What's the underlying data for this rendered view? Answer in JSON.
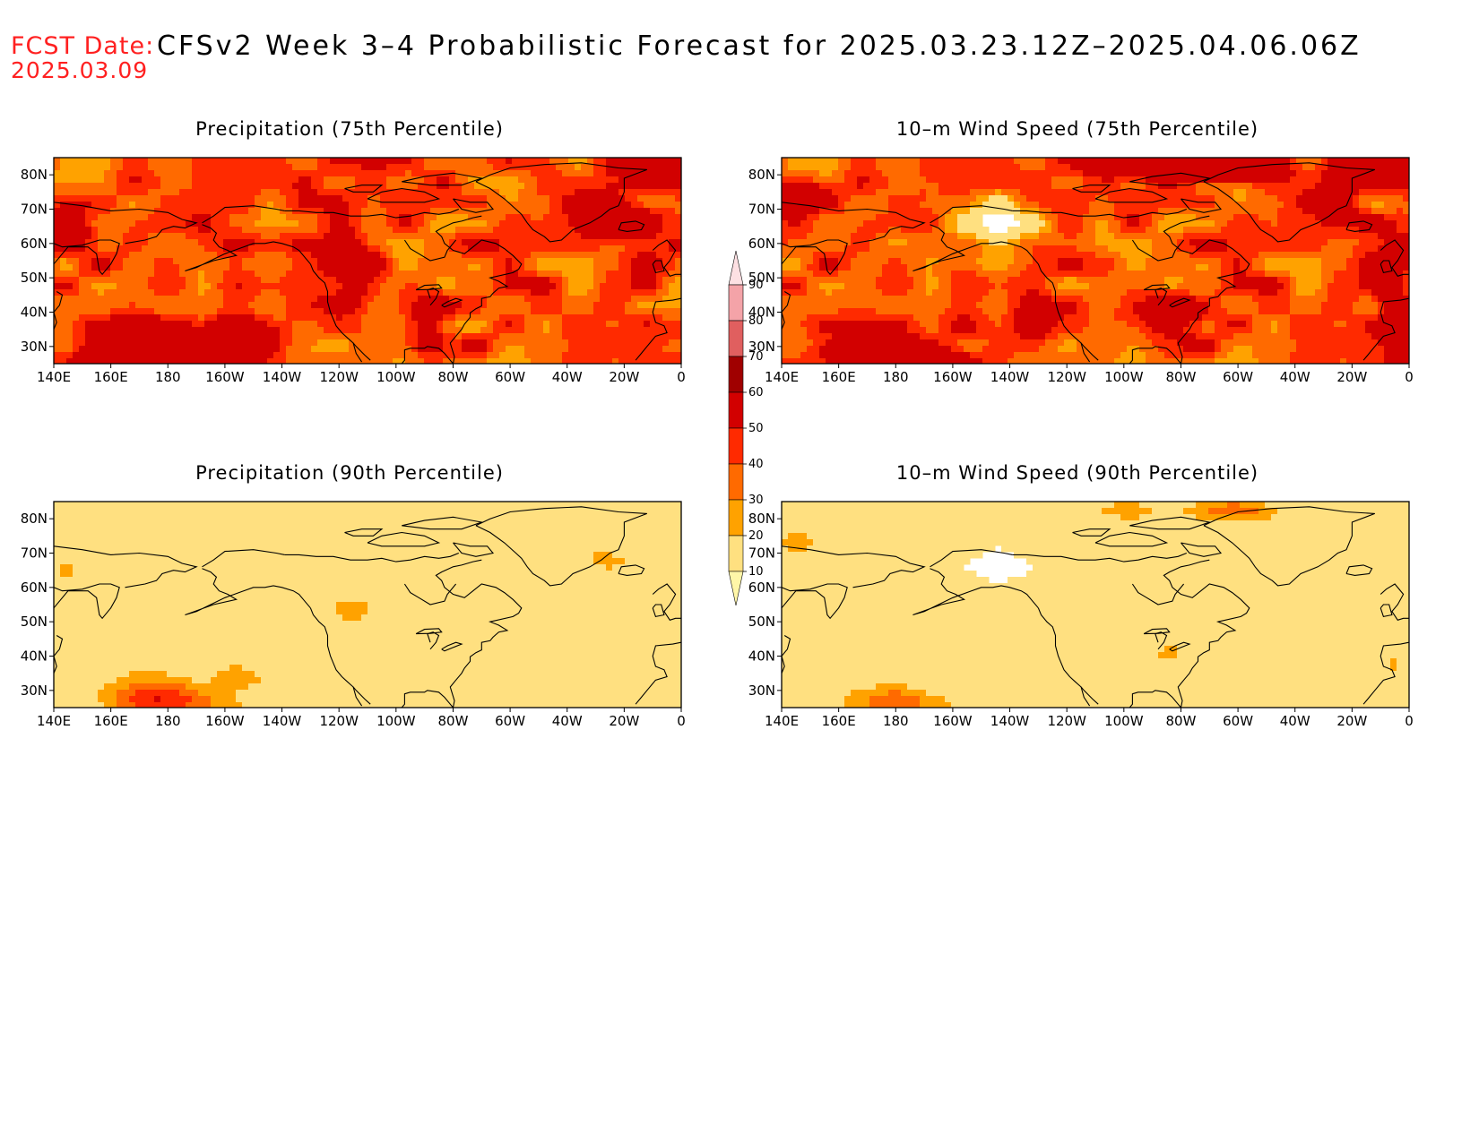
{
  "header": {
    "fcst_label": "FCST Date:",
    "fcst_date": "2025.03.09",
    "title": "CFSv2 Week 3–4 Probabilistic Forecast for 2025.03.23.12Z–2025.04.06.06Z"
  },
  "axes": {
    "lon_labels": [
      "140E",
      "160E",
      "180",
      "160W",
      "140W",
      "120W",
      "100W",
      "80W",
      "60W",
      "40W",
      "20W",
      "0"
    ],
    "lat_labels": [
      "80N",
      "70N",
      "60N",
      "50N",
      "40N",
      "30N"
    ]
  },
  "panels": [
    {
      "title": "Precipitation (75th Percentile)",
      "intensity": 1.0,
      "field": "precip"
    },
    {
      "title": "10–m Wind Speed (75th Percentile)",
      "intensity": 1.0,
      "field": "wind"
    },
    {
      "title": "Precipitation (90th Percentile)",
      "intensity": 0.3,
      "field": "precip"
    },
    {
      "title": "10–m Wind Speed (90th Percentile)",
      "intensity": 0.3,
      "field": "wind"
    }
  ],
  "colorbar": {
    "levels": [
      "10",
      "20",
      "30",
      "40",
      "50",
      "60",
      "70",
      "80",
      "90"
    ],
    "colors": [
      "#fff6a8",
      "#ffe080",
      "#ffa200",
      "#ff6a00",
      "#ff2a00",
      "#d20000",
      "#a00000",
      "#e05f5f",
      "#f4a3a8",
      "#fde0e3"
    ],
    "colors_note": "bands from below 10 up to above 90"
  }
}
